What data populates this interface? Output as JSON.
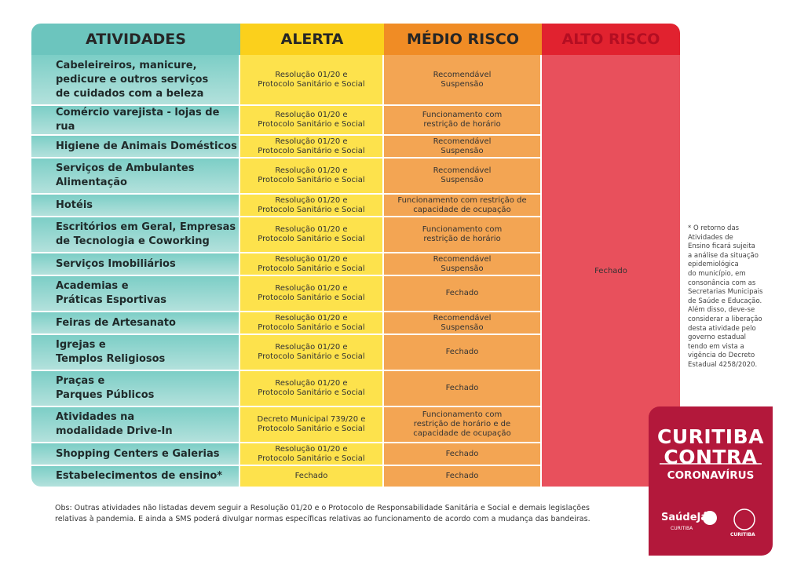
{
  "table": {
    "headers": [
      "ATIVIDADES",
      "ALERTA",
      "MÉDIO RISCO",
      "ALTO RISCO"
    ],
    "rows": [
      [
        "Cabeleireiros, manicure,\npedicure e outros serviços\nde cuidados com a beleza",
        "Resolução 01/20 e\nProtocolo Sanitário e Social",
        "Recomendável\nSuspensão"
      ],
      [
        "Comércio varejista - lojas de rua",
        "Resolução 01/20 e\nProtocolo Sanitário e Social",
        "Funcionamento com\nrestrição de horário"
      ],
      [
        "Higiene de Animais Domésticos",
        "Resolução 01/20 e\nProtocolo Sanitário e Social",
        "Recomendável\nSuspensão"
      ],
      [
        "Serviços de Ambulantes\nAlimentação",
        "Resolução 01/20 e\nProtocolo Sanitário e Social",
        "Recomendável\nSuspensão"
      ],
      [
        "Hotéis",
        "Resolução 01/20 e\nProtocolo Sanitário e Social",
        "Funcionamento com restrição de\ncapacidade de ocupação"
      ],
      [
        "Escritórios em Geral, Empresas\nde Tecnologia e Coworking",
        "Resolução 01/20 e\nProtocolo Sanitário e Social",
        "Funcionamento com\nrestrição de horário"
      ],
      [
        "Serviços Imobiliários",
        "Resolução 01/20 e\nProtocolo Sanitário e Social",
        "Recomendável\nSuspensão"
      ],
      [
        "Academias e\nPráticas Esportivas",
        "Resolução 01/20 e\nProtocolo Sanitário e Social",
        "Fechado"
      ],
      [
        "Feiras de Artesanato",
        "Resolução 01/20 e\nProtocolo Sanitário e Social",
        "Recomendável\nSuspensão"
      ],
      [
        "Igrejas e\nTemplos Religiosos",
        "Resolução 01/20 e\nProtocolo Sanitário e Social",
        "Fechado"
      ],
      [
        "Praças e\nParques Públicos",
        "Resolução 01/20 e\nProtocolo Sanitário e Social",
        "Fechado"
      ],
      [
        "Atividades na\nmodalidade Drive-In",
        "Decreto Municipal 739/20 e\nProtocolo Sanitário e Social",
        "Funcionamento com\nrestrição de horário e de\ncapacidade de ocupação"
      ],
      [
        "Shopping Centers e Galerias",
        "Resolução 01/20 e\nProtocolo Sanitário e Social",
        "Fechado"
      ],
      [
        "Estabelecimentos de ensino*",
        "Fechado",
        "Fechado"
      ]
    ],
    "alto_risco": "Fechado"
  },
  "side_note": "* O retorno das\nAtividades de\nEnsino ficará sujeita\na análise da situação\nepidemiológica\ndo município, em\nconsonância com as\nSecretarias Municipais\nde Saúde e Educação.\nAlém disso, deve-se\nconsiderar a liberação\ndesta atividade pelo\ngoverno estadual\ntendo em vista a\nvigência do Decreto\nEstadual 4258/2020.",
  "footnote": "Obs: Outras atividades não listadas devem seguir a Resolução 01/20 e o Protocolo de Responsabilidade Sanitária e Social e demais legislações\nrelativas à pandemia. E ainda a SMS poderá divulgar normas específicas relativas ao funcionamento de acordo com a mudança das bandeiras.",
  "logo": {
    "line1": "CURITIBA",
    "line2": "CONTRA",
    "line3": "CORONAVÍRUS",
    "saude": "SaúdeJá",
    "saude_sub": "CURITIBA",
    "brasao": "CURITIBA"
  }
}
